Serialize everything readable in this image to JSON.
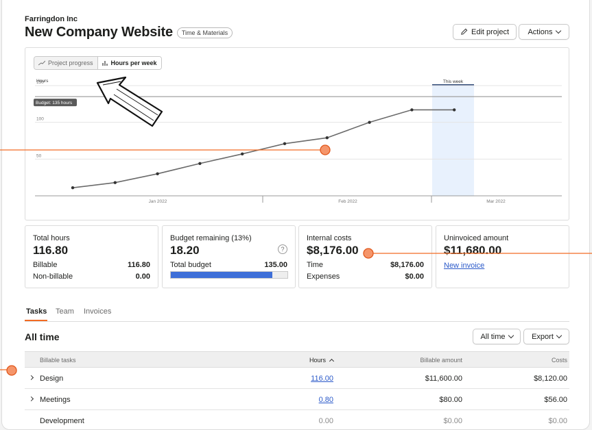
{
  "header": {
    "client": "Farringdon Inc",
    "title": "New Company Website",
    "badge": "Time & Materials",
    "edit_label": "Edit project",
    "actions_label": "Actions"
  },
  "chart_toggle": {
    "project_progress": "Project progress",
    "hours_per_week": "Hours per week"
  },
  "chart_data": {
    "type": "line",
    "ylabel": "Hours",
    "y_ticks": [
      "150",
      "100",
      "50"
    ],
    "ylim": [
      0,
      150
    ],
    "x_ticks": [
      "Jan 2022",
      "Feb 2022",
      "Mar 2022"
    ],
    "budget_label": "Budget: 135 hours",
    "budget": 135,
    "highlight_label": "This week",
    "x": [
      1,
      2,
      3,
      4,
      5,
      6,
      7,
      8,
      9,
      10
    ],
    "values": [
      11,
      18,
      30,
      44,
      57,
      71,
      79,
      100,
      117,
      117
    ],
    "grid": true
  },
  "stats": {
    "total_hours": {
      "label": "Total hours",
      "value": "116.80",
      "billable_label": "Billable",
      "billable": "116.80",
      "nonbillable_label": "Non-billable",
      "nonbillable": "0.00"
    },
    "budget": {
      "label": "Budget remaining (13%)",
      "value": "18.20",
      "help": "?",
      "total_label": "Total budget",
      "total": "135.00",
      "progress": 0.87
    },
    "internal_costs": {
      "label": "Internal costs",
      "value": "$8,176.00",
      "time_label": "Time",
      "time": "$8,176.00",
      "expenses_label": "Expenses",
      "expenses": "$0.00"
    },
    "uninvoiced": {
      "label": "Uninvoiced amount",
      "value": "$11,680.00",
      "link": "New invoice"
    }
  },
  "tabs": [
    "Tasks",
    "Team",
    "Invoices"
  ],
  "section": {
    "title": "All time",
    "range_label": "All time",
    "export_label": "Export"
  },
  "table": {
    "headers": {
      "name": "Billable tasks",
      "hours": "Hours",
      "amount": "Billable amount",
      "costs": "Costs"
    },
    "rows": [
      {
        "name": "Design",
        "hours": "116.00",
        "amount": "$11,600.00",
        "costs": "$8,120.00"
      },
      {
        "name": "Meetings",
        "hours": "0.80",
        "amount": "$80.00",
        "costs": "$56.00"
      },
      {
        "name": "Development",
        "hours": "0.00",
        "amount": "$0.00",
        "costs": "$0.00"
      }
    ]
  },
  "colors": {
    "accent": "#f26b23",
    "link": "#2a59c9",
    "progress": "#3e6fd8",
    "highlight": "#e8f1fd"
  }
}
